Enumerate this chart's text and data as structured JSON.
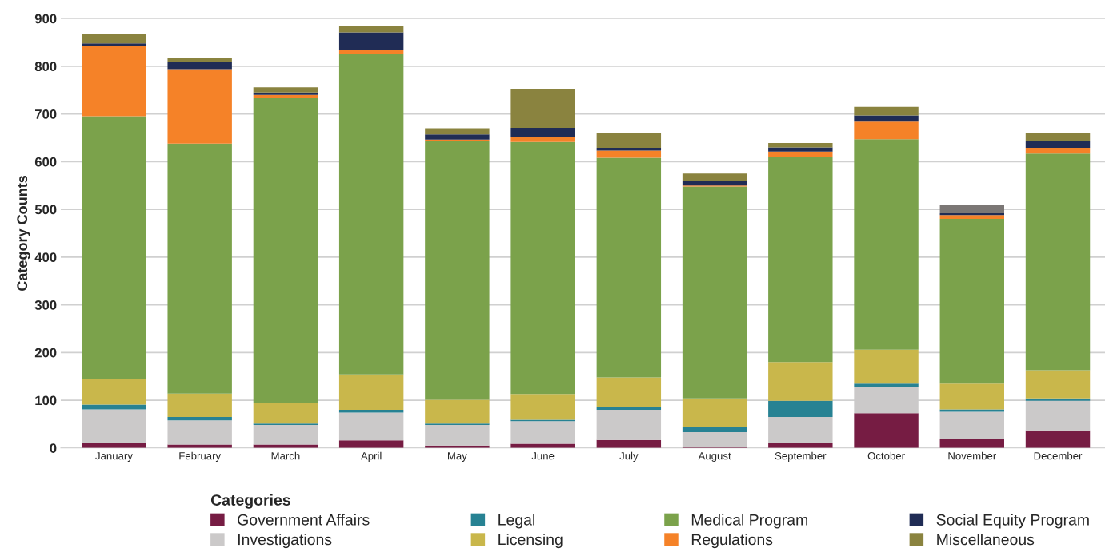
{
  "chart_data": {
    "type": "bar",
    "stacked": true,
    "ylabel": "Category Counts",
    "legend_title": "Categories",
    "legend": "bottom",
    "grid": "y",
    "categories": [
      "January",
      "February",
      "March",
      "April",
      "May",
      "June",
      "July",
      "August",
      "September",
      "October",
      "November",
      "December"
    ],
    "ylim": [
      0,
      900
    ],
    "yticks": [
      0,
      100,
      200,
      300,
      400,
      500,
      600,
      700,
      800,
      900
    ],
    "series": [
      {
        "name": "Government Affairs",
        "color": "#761c43",
        "values": [
          10,
          7,
          7,
          16,
          5,
          9,
          17,
          3,
          11,
          73,
          19,
          37
        ]
      },
      {
        "name": "Investigations",
        "color": "#cbc9c9",
        "values": [
          71,
          51,
          41,
          58,
          43,
          47,
          63,
          30,
          54,
          55,
          57,
          62
        ]
      },
      {
        "name": "Legal",
        "color": "#278293",
        "values": [
          10,
          7,
          3,
          6,
          3,
          3,
          5,
          10,
          34,
          7,
          5,
          5
        ]
      },
      {
        "name": "Licensing",
        "color": "#c9b74b",
        "values": [
          54,
          49,
          44,
          74,
          50,
          54,
          63,
          61,
          81,
          71,
          54,
          59
        ]
      },
      {
        "name": "Medical Program",
        "color": "#7ba24b",
        "values": [
          550,
          524,
          638,
          671,
          543,
          528,
          460,
          444,
          429,
          441,
          345,
          454
        ]
      },
      {
        "name": "Regulations",
        "color": "#f58228",
        "values": [
          147,
          156,
          7,
          10,
          2,
          10,
          15,
          2,
          12,
          37,
          8,
          12
        ]
      },
      {
        "name": "Social Equity Program",
        "color": "#202c55",
        "values": [
          6,
          16,
          5,
          36,
          11,
          20,
          6,
          10,
          9,
          13,
          4,
          15
        ]
      },
      {
        "name": "Miscellaneous",
        "color": "#8a833f",
        "colors": [
          "#8a833f",
          "#8a833f",
          "#8a833f",
          "#8a833f",
          "#8a833f",
          "#8a833f",
          "#8a833f",
          "#8a833f",
          "#8a833f",
          "#8a833f",
          "#7b7775",
          "#8a833f"
        ],
        "values": [
          20,
          8,
          11,
          14,
          13,
          81,
          30,
          15,
          9,
          18,
          18,
          16
        ]
      }
    ]
  }
}
